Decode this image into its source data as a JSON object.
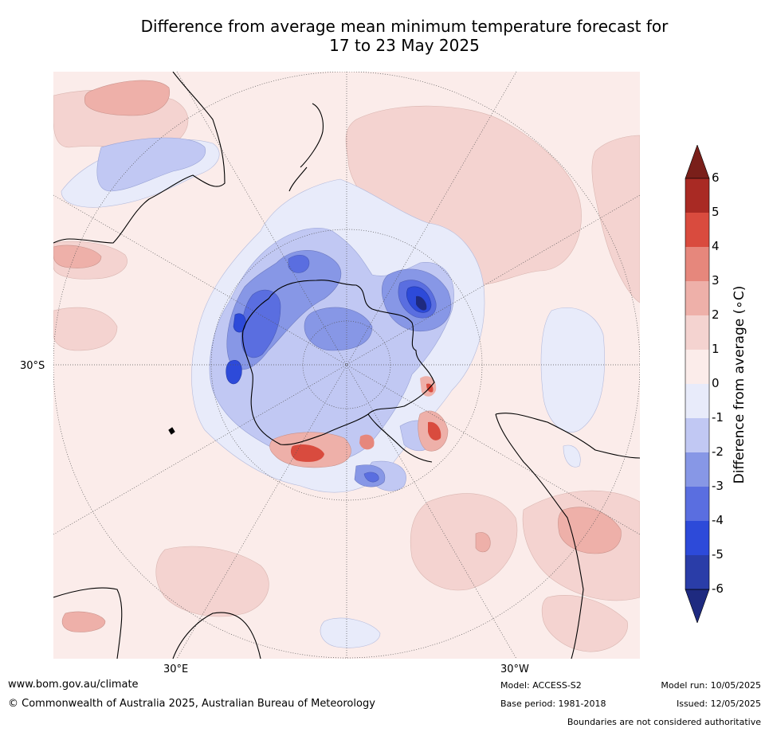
{
  "title": {
    "line1": "Difference from average mean minimum temperature forecast for",
    "line2": "17 to 23 May 2025"
  },
  "map": {
    "projection": "south-polar stereographic",
    "axis_labels": {
      "lat": "30°S",
      "lon_left": "30°E",
      "lon_right": "30°W"
    }
  },
  "colorbar": {
    "label": "Difference from average (∘C)",
    "ticks": [
      "6",
      "5",
      "4",
      "3",
      "2",
      "1",
      "0",
      "-1",
      "-2",
      "-3",
      "-4",
      "-5",
      "-6"
    ],
    "colors": {
      "above_6": "#7a1f1a",
      "5_6": "#a92a24",
      "4_5": "#d94b3e",
      "3_4": "#e6877c",
      "2_3": "#eeb0a9",
      "1_2": "#f4d3d0",
      "0_1": "#fbecea",
      "m1_0": "#e8ebfa",
      "m2_m1": "#c1c8f3",
      "m3_m2": "#8797e6",
      "m4_m3": "#5a6ee0",
      "m5_m4": "#2d4ad9",
      "m6_m5": "#2a3da8",
      "below_m6": "#1e2a80"
    }
  },
  "footer": {
    "website": "www.bom.gov.au/climate",
    "copyright": "© Commonwealth of Australia 2025, Australian Bureau of Meteorology",
    "model": "Model: ACCESS-S2",
    "base_period": "Base period: 1981-2018",
    "model_run": "Model run: 10/05/2025",
    "issued": "Issued: 12/05/2025",
    "disclaimer": "Boundaries are not considered authoritative"
  }
}
